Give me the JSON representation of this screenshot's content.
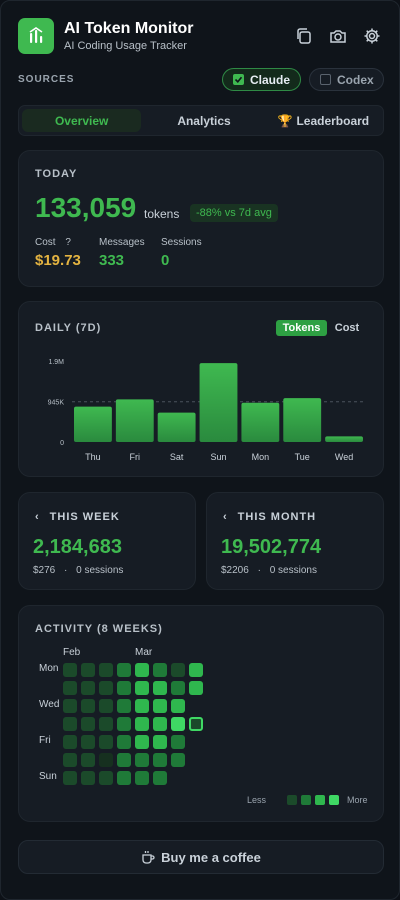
{
  "header": {
    "title": "AI Token Monitor",
    "subtitle": "AI Coding Usage Tracker",
    "icons": [
      "copy-icon",
      "camera-icon",
      "gear-icon"
    ]
  },
  "sources": {
    "label": "SOURCES",
    "items": [
      {
        "label": "Claude",
        "checked": true
      },
      {
        "label": "Codex",
        "checked": false
      }
    ]
  },
  "tabs": [
    {
      "label": "Overview",
      "active": true
    },
    {
      "label": "Analytics",
      "active": false
    },
    {
      "label": "Leaderboard",
      "active": false,
      "icon": "🏆"
    }
  ],
  "today": {
    "title": "TODAY",
    "tokens": "133,059",
    "tokens_unit": "tokens",
    "badge": "-88% vs 7d avg",
    "cost_label": "Cost",
    "cost_help": "?",
    "cost_value": "$19.73",
    "messages_label": "Messages",
    "messages_value": "333",
    "sessions_label": "Sessions",
    "sessions_value": "0"
  },
  "daily": {
    "title": "DAILY (7D)",
    "toggle_tokens": "Tokens",
    "toggle_cost": "Cost",
    "chart_data": {
      "type": "bar",
      "categories": [
        "Thu",
        "Fri",
        "Sat",
        "Sun",
        "Mon",
        "Tue",
        "Wed"
      ],
      "values": [
        830000,
        1000000,
        690000,
        1850000,
        920000,
        1030000,
        133059
      ],
      "y_ticks": [
        "1.9M",
        "945K",
        "0"
      ],
      "ylim": [
        0,
        1900000
      ],
      "avg_line": 945000,
      "grid": false,
      "color": "#3fb950"
    }
  },
  "week": {
    "title": "THIS WEEK",
    "value": "2,184,683",
    "cost": "$276",
    "sep": "·",
    "sessions": "0 sessions"
  },
  "month": {
    "title": "THIS MONTH",
    "value": "19,502,774",
    "cost": "$2206",
    "sep": "·",
    "sessions": "0 sessions"
  },
  "activity": {
    "title": "ACTIVITY (8 WEEKS)",
    "months": [
      "Feb",
      "Mar"
    ],
    "days": [
      "Mon",
      "Wed",
      "Fri",
      "Sun"
    ],
    "levels": [
      [
        1,
        1,
        1,
        1,
        1,
        1,
        1
      ],
      [
        1,
        1,
        1,
        1,
        1,
        1,
        1
      ],
      [
        1,
        1,
        1,
        1,
        1,
        0,
        1
      ],
      [
        2,
        2,
        2,
        2,
        2,
        2,
        2
      ],
      [
        3,
        3,
        3,
        3,
        3,
        2,
        2
      ],
      [
        2,
        3,
        3,
        3,
        3,
        2,
        2
      ],
      [
        1,
        2,
        3,
        4,
        2,
        2,
        null
      ],
      [
        3,
        3,
        null,
        "today",
        null,
        null,
        null
      ]
    ],
    "less_label": "Less",
    "more_label": "More",
    "colors": [
      "#16301f",
      "#1b4a2a",
      "#1f7a38",
      "#2fb74e",
      "#3fd864"
    ]
  },
  "coffee": {
    "label": "Buy me a coffee",
    "icon": "coffee-icon"
  }
}
